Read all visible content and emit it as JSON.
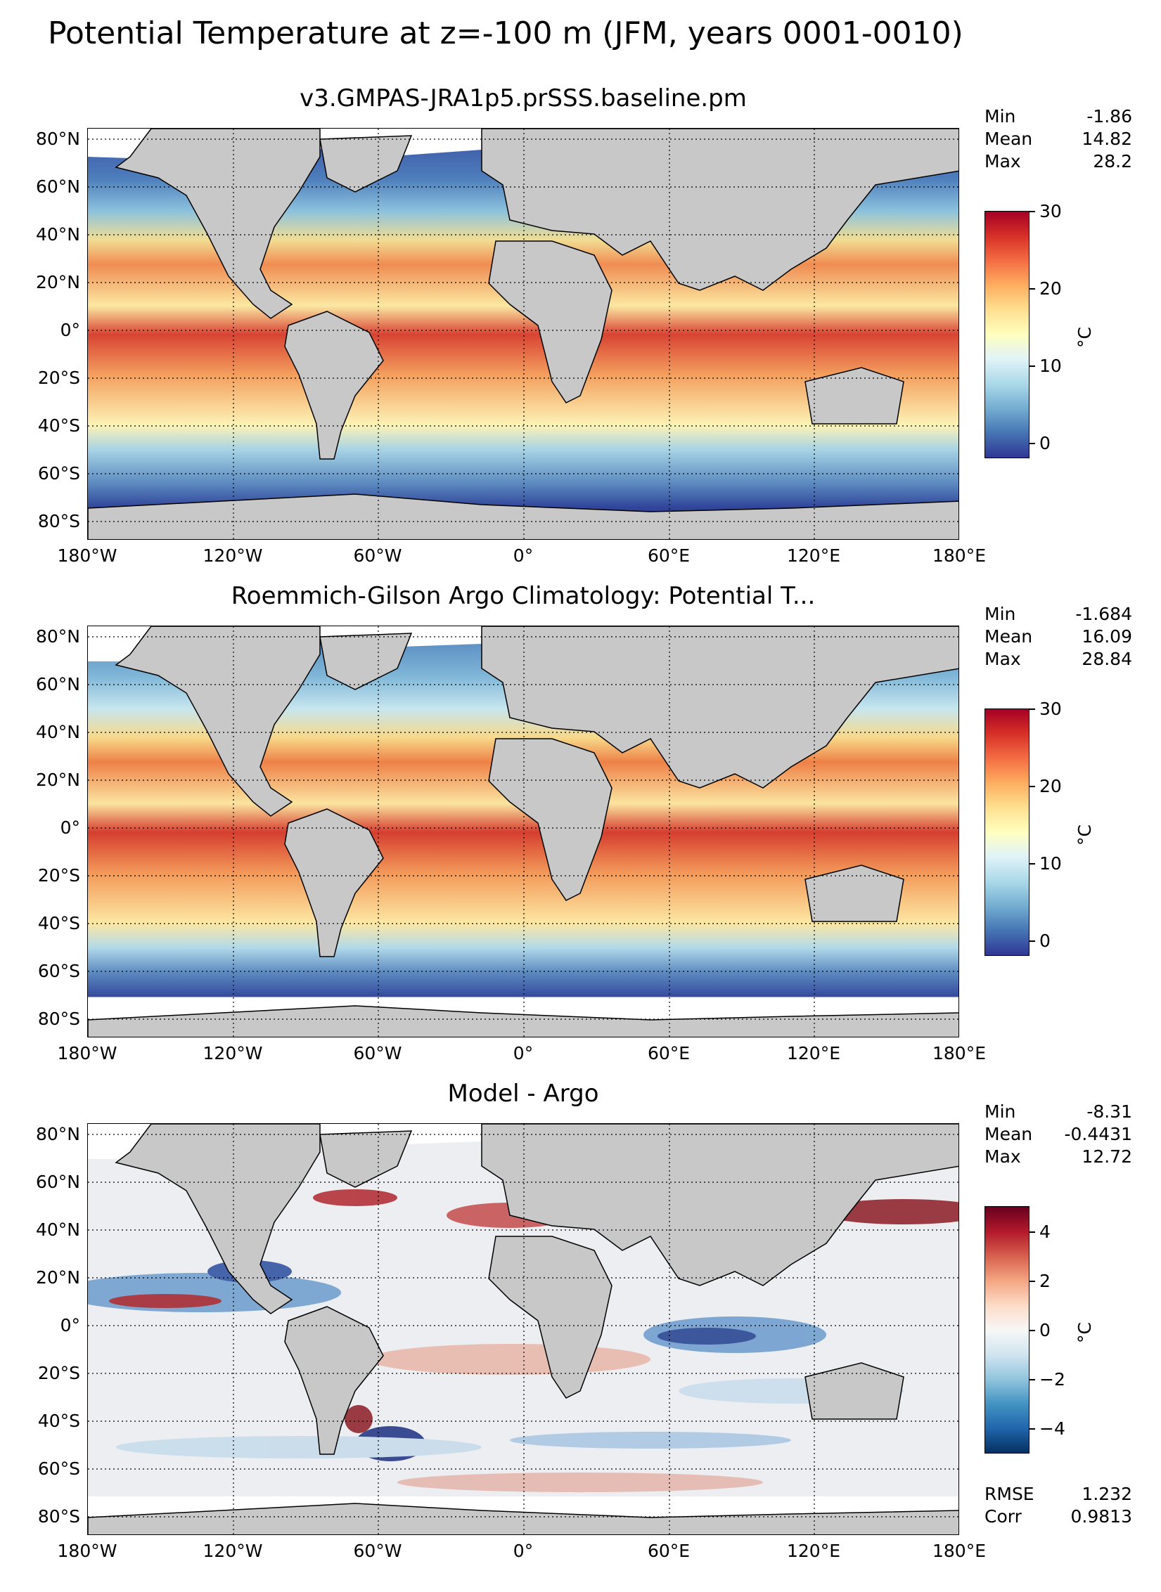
{
  "figure": {
    "title": "Potential Temperature at z=-100 m (JFM, years 0001-0010)"
  },
  "axes": {
    "lat_labels": [
      "80°N",
      "60°N",
      "40°N",
      "20°N",
      "0°",
      "20°S",
      "40°S",
      "60°S",
      "80°S"
    ],
    "lon_labels": [
      "180°W",
      "120°W",
      "60°W",
      "0°",
      "60°E",
      "120°E",
      "180°E"
    ]
  },
  "panels": [
    {
      "title": "v3.GMPAS-JRA1p5.prSSS.baseline.pm",
      "stats": [
        {
          "label": "Min",
          "value": "-1.86"
        },
        {
          "label": "Mean",
          "value": "14.82"
        },
        {
          "label": "Max",
          "value": "28.2"
        }
      ],
      "colorbar": {
        "ticks": [
          "30",
          "20",
          "10",
          "0"
        ],
        "unit": "°C",
        "range": [
          -2,
          30
        ]
      }
    },
    {
      "title": "Roemmich-Gilson Argo Climatology: Potential T...",
      "stats": [
        {
          "label": "Min",
          "value": "-1.684"
        },
        {
          "label": "Mean",
          "value": "16.09"
        },
        {
          "label": "Max",
          "value": "28.84"
        }
      ],
      "colorbar": {
        "ticks": [
          "30",
          "20",
          "10",
          "0"
        ],
        "unit": "°C",
        "range": [
          -2,
          30
        ]
      }
    },
    {
      "title": "Model - Argo",
      "stats": [
        {
          "label": "Min",
          "value": "-8.31"
        },
        {
          "label": "Mean",
          "value": "-0.4431"
        },
        {
          "label": "Max",
          "value": "12.72"
        }
      ],
      "colorbar": {
        "ticks": [
          "4",
          "2",
          "0",
          "−2",
          "−4"
        ],
        "unit": "°C",
        "range": [
          -5,
          5
        ]
      },
      "extra_stats": [
        {
          "label": "RMSE",
          "value": "1.232"
        },
        {
          "label": "Corr",
          "value": "0.9813"
        }
      ]
    }
  ],
  "colors": {
    "land": "#c8c8c8",
    "missing": "#ffffff",
    "warm": "#c0282a",
    "cold": "#2c3d96",
    "neutral": "#f4f1de"
  }
}
